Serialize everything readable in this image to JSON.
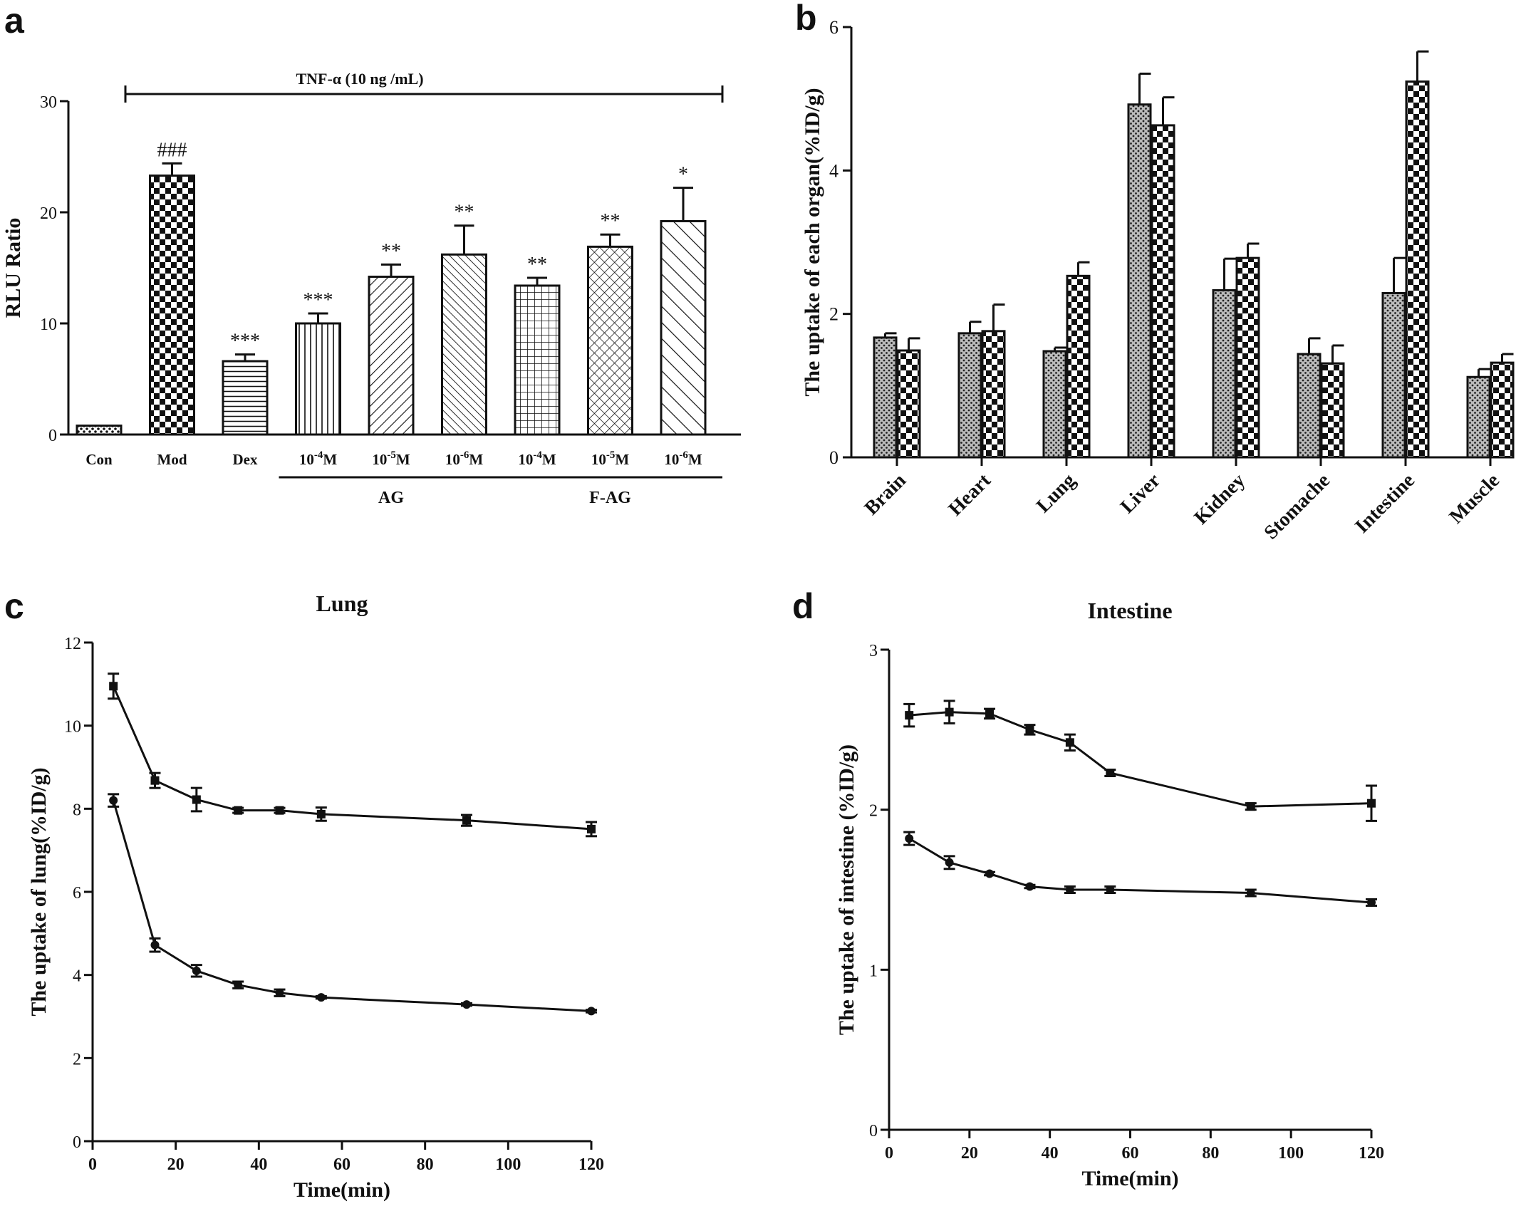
{
  "panels": {
    "a": {
      "letter": "a"
    },
    "b": {
      "letter": "b"
    },
    "c": {
      "letter": "c"
    },
    "d": {
      "letter": "d"
    }
  },
  "colors": {
    "ink": "#111111",
    "background": "#ffffff"
  },
  "chart_data": [
    {
      "id": "a",
      "type": "bar",
      "title": "",
      "xlabel": "",
      "ylabel": "RLU Ratio",
      "ylim": [
        0,
        30
      ],
      "yticks": [
        0,
        10,
        20,
        30
      ],
      "grid": false,
      "annotation": "TNF-α  (10 ng /mL)",
      "categories": [
        "Con",
        "Mod",
        "Dex",
        "10^-4M",
        "10^-5M",
        "10^-6M",
        "10^-4M",
        "10^-5M",
        "10^-6M"
      ],
      "category_labels": [
        {
          "base": "Con",
          "sup": "",
          "tail": ""
        },
        {
          "base": "Mod",
          "sup": "",
          "tail": ""
        },
        {
          "base": "Dex",
          "sup": "",
          "tail": ""
        },
        {
          "base": "10",
          "sup": "-4",
          "tail": "M"
        },
        {
          "base": "10",
          "sup": "-5",
          "tail": "M"
        },
        {
          "base": "10",
          "sup": "-6",
          "tail": "M"
        },
        {
          "base": "10",
          "sup": "-4",
          "tail": "M"
        },
        {
          "base": "10",
          "sup": "-5",
          "tail": "M"
        },
        {
          "base": "10",
          "sup": "-6",
          "tail": "M"
        }
      ],
      "values": [
        0.8,
        23.3,
        6.6,
        10.0,
        14.2,
        16.2,
        13.4,
        16.9,
        19.2
      ],
      "errors": [
        0.0,
        1.1,
        0.6,
        0.9,
        1.1,
        2.6,
        0.7,
        1.1,
        3.0
      ],
      "patterns": [
        "dots",
        "checker",
        "hlines",
        "vlines",
        "diag",
        "diag-dense",
        "grid",
        "crosshatch",
        "diag-wide"
      ],
      "significance": [
        "",
        "###",
        "***",
        "***",
        "**",
        "**",
        "**",
        "**",
        "*"
      ],
      "groups": [
        {
          "label": "AG",
          "from": 3,
          "to": 5
        },
        {
          "label": "F-AG",
          "from": 6,
          "to": 8
        }
      ]
    },
    {
      "id": "b",
      "type": "bar",
      "title": "",
      "xlabel": "",
      "ylabel": "The uptake of each organ(%ID/g)",
      "ylim": [
        0,
        6
      ],
      "yticks": [
        0,
        2,
        4,
        6
      ],
      "grid": false,
      "categories": [
        "Brain",
        "Heart",
        "Lung",
        "Liver",
        "Kidney",
        "Stomache",
        "Intestine",
        "Muscle"
      ],
      "series": [
        {
          "pattern": "fine-dots",
          "values": [
            1.67,
            1.73,
            1.48,
            4.92,
            2.33,
            1.44,
            2.29,
            1.12
          ],
          "errors": [
            0.06,
            0.16,
            0.05,
            0.43,
            0.44,
            0.22,
            0.49,
            0.11
          ]
        },
        {
          "pattern": "checker",
          "values": [
            1.49,
            1.76,
            2.53,
            4.63,
            2.78,
            1.31,
            5.24,
            1.32
          ],
          "errors": [
            0.17,
            0.37,
            0.19,
            0.39,
            0.2,
            0.25,
            0.42,
            0.12
          ]
        }
      ]
    },
    {
      "id": "c",
      "type": "line",
      "title": "Lung",
      "xlabel": "Time(min)",
      "ylabel": "The uptake of lung(%ID/g)",
      "xlim": [
        0,
        120
      ],
      "ylim": [
        0,
        12
      ],
      "xticks": [
        0,
        20,
        40,
        60,
        80,
        100,
        120
      ],
      "yticks": [
        0,
        2,
        4,
        6,
        8,
        10,
        12
      ],
      "grid": false,
      "x": [
        5,
        15,
        25,
        35,
        45,
        55,
        90,
        120
      ],
      "series": [
        {
          "marker": "square",
          "values": [
            10.95,
            8.68,
            8.22,
            7.96,
            7.96,
            7.87,
            7.72,
            7.51
          ],
          "errors": [
            0.3,
            0.18,
            0.28,
            0.06,
            0.06,
            0.16,
            0.13,
            0.17
          ]
        },
        {
          "marker": "circle",
          "values": [
            8.2,
            4.72,
            4.1,
            3.76,
            3.57,
            3.46,
            3.29,
            3.13
          ],
          "errors": [
            0.15,
            0.16,
            0.14,
            0.08,
            0.08,
            0.03,
            0.03,
            0.03
          ]
        }
      ]
    },
    {
      "id": "d",
      "type": "line",
      "title": "Intestine",
      "xlabel": "Time(min)",
      "ylabel": "The uptake of intestine (%ID/g)",
      "xlim": [
        0,
        120
      ],
      "ylim": [
        0,
        3
      ],
      "xticks": [
        0,
        20,
        40,
        60,
        80,
        100,
        120
      ],
      "yticks": [
        0,
        1,
        2,
        3
      ],
      "grid": false,
      "x": [
        5,
        15,
        25,
        35,
        45,
        55,
        90,
        120
      ],
      "series": [
        {
          "marker": "square",
          "values": [
            2.59,
            2.61,
            2.6,
            2.5,
            2.42,
            2.23,
            2.02,
            2.04
          ],
          "errors": [
            0.07,
            0.07,
            0.03,
            0.03,
            0.05,
            0.02,
            0.02,
            0.11
          ]
        },
        {
          "marker": "circle",
          "values": [
            1.82,
            1.67,
            1.6,
            1.52,
            1.5,
            1.5,
            1.48,
            1.42
          ],
          "errors": [
            0.04,
            0.04,
            0.01,
            0.01,
            0.02,
            0.02,
            0.02,
            0.02
          ]
        }
      ]
    }
  ]
}
